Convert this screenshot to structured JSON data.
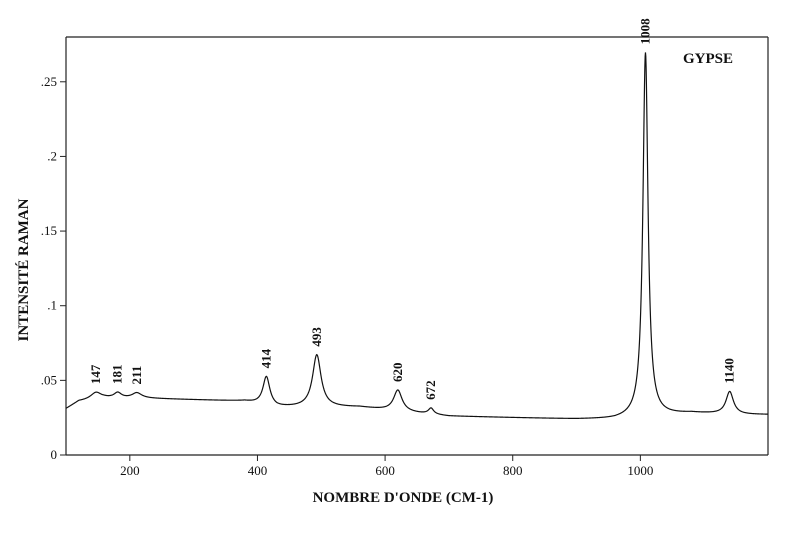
{
  "chart_data": {
    "type": "line",
    "title": "GYPSE",
    "xlabel": "NOMBRE D'ONDE (CM-1)",
    "ylabel": "INTENSITÉ RAMAN",
    "xlim": [
      100,
      1200
    ],
    "ylim": [
      0,
      0.28
    ],
    "x_ticks": [
      200,
      400,
      600,
      800,
      1000
    ],
    "x_tick_labels": [
      "200",
      "400",
      "600",
      "800",
      "1000"
    ],
    "y_ticks": [
      0,
      0.05,
      0.1,
      0.15,
      0.2,
      0.25
    ],
    "y_tick_labels": [
      "0",
      ".05",
      ".1",
      ".15",
      ".2",
      ".25"
    ],
    "grid": false,
    "baseline": {
      "x": [
        100,
        120,
        160,
        220,
        300,
        380,
        430,
        560,
        650,
        700,
        800,
        900,
        960,
        1080,
        1160,
        1200
      ],
      "y": [
        0.031,
        0.036,
        0.038,
        0.038,
        0.037,
        0.036,
        0.032,
        0.032,
        0.028,
        0.026,
        0.025,
        0.024,
        0.024,
        0.028,
        0.027,
        0.027
      ]
    },
    "peaks": [
      {
        "position": 147,
        "label": "147",
        "height": 0.0045,
        "width": 10
      },
      {
        "position": 181,
        "label": "181",
        "height": 0.0035,
        "width": 7
      },
      {
        "position": 211,
        "label": "211",
        "height": 0.0035,
        "width": 9
      },
      {
        "position": 414,
        "label": "414",
        "height": 0.019,
        "width": 6.5
      },
      {
        "position": 493,
        "label": "493",
        "height": 0.035,
        "width": 8
      },
      {
        "position": 620,
        "label": "620",
        "height": 0.014,
        "width": 8
      },
      {
        "position": 672,
        "label": "672",
        "height": 0.004,
        "width": 5
      },
      {
        "position": 1008,
        "label": "1008",
        "height": 0.244,
        "width": 4.8
      },
      {
        "position": 1140,
        "label": "1140",
        "height": 0.015,
        "width": 7
      }
    ]
  }
}
